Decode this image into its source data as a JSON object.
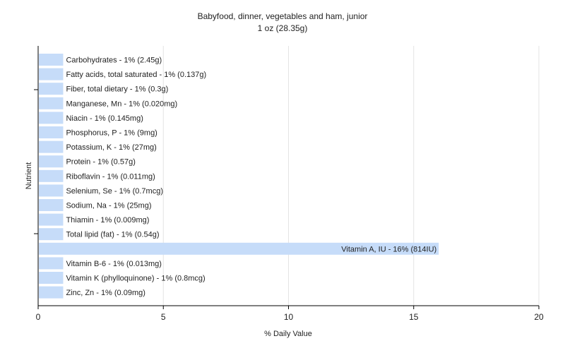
{
  "chart_data": {
    "type": "bar",
    "orientation": "horizontal",
    "title": "Babyfood, dinner, vegetables and ham, junior",
    "subtitle": "1 oz (28.35g)",
    "xlabel": "% Daily Value",
    "ylabel": "Nutrient",
    "xlim": [
      0,
      20
    ],
    "xticks": [
      "0",
      "5",
      "10",
      "15",
      "20"
    ],
    "grid": true,
    "bar_color": "#c6dcf9",
    "categories": [
      "Carbohydrates",
      "Fatty acids, total saturated",
      "Fiber, total dietary",
      "Manganese, Mn",
      "Niacin",
      "Phosphorus, P",
      "Potassium, K",
      "Protein",
      "Riboflavin",
      "Selenium, Se",
      "Sodium, Na",
      "Thiamin",
      "Total lipid (fat)",
      "Vitamin A, IU",
      "Vitamin B-6",
      "Vitamin K (phylloquinone)",
      "Zinc, Zn"
    ],
    "values": [
      1,
      1,
      1,
      1,
      1,
      1,
      1,
      1,
      1,
      1,
      1,
      1,
      1,
      16,
      1,
      1,
      1
    ],
    "labels": [
      "Carbohydrates - 1% (2.45g)",
      "Fatty acids, total saturated - 1% (0.137g)",
      "Fiber, total dietary - 1% (0.3g)",
      "Manganese, Mn - 1% (0.020mg)",
      "Niacin - 1% (0.145mg)",
      "Phosphorus, P - 1% (9mg)",
      "Potassium, K - 1% (27mg)",
      "Protein - 1% (0.57g)",
      "Riboflavin - 1% (0.011mg)",
      "Selenium, Se - 1% (0.7mcg)",
      "Sodium, Na - 1% (25mg)",
      "Thiamin - 1% (0.009mg)",
      "Total lipid (fat) - 1% (0.54g)",
      "Vitamin A, IU - 16% (814IU)",
      "Vitamin B-6 - 1% (0.013mg)",
      "Vitamin K (phylloquinone) - 1% (0.8mcg)",
      "Zinc, Zn - 1% (0.09mg)"
    ]
  }
}
